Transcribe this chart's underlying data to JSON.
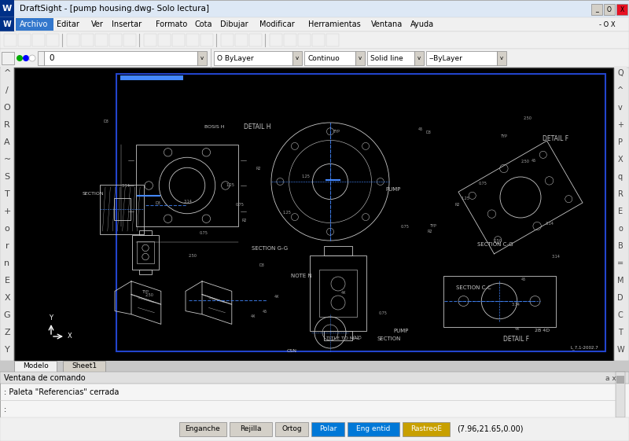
{
  "title_bar": "DraftSight - [pump housing.dwg- Solo lectura]",
  "menu_items": [
    "Archivo",
    "Editar",
    "Ver",
    "Insertar",
    "Formato",
    "Cota",
    "Dibujar",
    "Modificar",
    "Herramientas",
    "Ventana",
    "Ayuda"
  ],
  "ui_bg": "#d4d0c8",
  "tab_labels": [
    "Modelo",
    "Sheet1"
  ],
  "cmd_label": "Ventana de comando",
  "cmd_text": ": Paleta \"Referencias\" cerrada",
  "status_buttons": [
    "Enganche",
    "Rejilla",
    "Ortog",
    "Polar",
    "Eng entid",
    "RastreoE"
  ],
  "status_coords": "(7.96,21.65,0.00)",
  "polar_highlight": "#0078d7",
  "eng_entid_highlight": "#0078d7",
  "rastreo_highlight": "#c8a000",
  "fig_width": 8.0,
  "fig_height": 5.61,
  "dpi": 100,
  "drawing_border_color": "#2244cc",
  "wh": "#c8c8c8",
  "bl": "#4488ff",
  "dim_texts": [
    [
      310,
      400,
      "DETAIL H",
      5.5
    ],
    [
      320,
      245,
      "SECTION G-G",
      5
    ],
    [
      607,
      250,
      "SECTION C-G",
      5
    ],
    [
      690,
      385,
      "DETAIL F",
      5.5
    ],
    [
      370,
      210,
      "NOTE N",
      5
    ],
    [
      490,
      320,
      "PUMP",
      5
    ],
    [
      640,
      130,
      "DETAIL F",
      5.5
    ],
    [
      480,
      130,
      "SECTION",
      5
    ],
    [
      105,
      315,
      "SECTION",
      4.5
    ],
    [
      415,
      130,
      "TITLE TO MAL",
      4.5
    ],
    [
      680,
      140,
      "2B 4D",
      4.5
    ],
    [
      580,
      195,
      "SECTION C-C",
      5
    ],
    [
      365,
      115,
      "CSN",
      4.5
    ],
    [
      260,
      400,
      "BOSIS H",
      4.5
    ],
    [
      500,
      140,
      "PUMP",
      5
    ]
  ]
}
